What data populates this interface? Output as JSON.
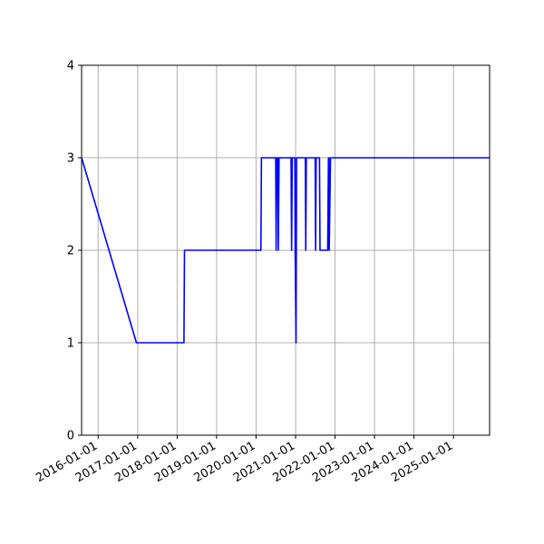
{
  "chart_data": {
    "type": "line",
    "title": "",
    "xlabel": "",
    "ylabel": "",
    "x_axis_type": "date",
    "xlim": [
      "2015-08-01",
      "2025-12-01"
    ],
    "ylim": [
      0,
      4
    ],
    "grid": true,
    "x_ticks": [
      "2016-01-01",
      "2017-01-01",
      "2018-01-01",
      "2019-01-01",
      "2020-01-01",
      "2021-01-01",
      "2022-01-01",
      "2023-01-01",
      "2024-01-01",
      "2025-01-01"
    ],
    "y_ticks": [
      0,
      1,
      2,
      3,
      4
    ],
    "series": [
      {
        "color": "#0000ff",
        "points": [
          {
            "x": "2015-08-01",
            "y": 3
          },
          {
            "x": "2016-12-20",
            "y": 1
          },
          {
            "x": "2018-03-05",
            "y": 1
          },
          {
            "x": "2018-03-10",
            "y": 2
          },
          {
            "x": "2020-02-15",
            "y": 2
          },
          {
            "x": "2020-02-20",
            "y": 3
          },
          {
            "x": "2020-07-01",
            "y": 3
          },
          {
            "x": "2020-07-05",
            "y": 2
          },
          {
            "x": "2020-07-10",
            "y": 3
          },
          {
            "x": "2020-07-20",
            "y": 3
          },
          {
            "x": "2020-07-25",
            "y": 2
          },
          {
            "x": "2020-08-01",
            "y": 3
          },
          {
            "x": "2020-11-20",
            "y": 3
          },
          {
            "x": "2020-11-25",
            "y": 2
          },
          {
            "x": "2020-12-01",
            "y": 3
          },
          {
            "x": "2020-12-25",
            "y": 3
          },
          {
            "x": "2020-12-28",
            "y": 2
          },
          {
            "x": "2021-01-05",
            "y": 1
          },
          {
            "x": "2021-01-10",
            "y": 3
          },
          {
            "x": "2021-04-01",
            "y": 3
          },
          {
            "x": "2021-04-05",
            "y": 2
          },
          {
            "x": "2021-04-10",
            "y": 3
          },
          {
            "x": "2021-07-01",
            "y": 3
          },
          {
            "x": "2021-07-05",
            "y": 2
          },
          {
            "x": "2021-07-10",
            "y": 3
          },
          {
            "x": "2021-08-10",
            "y": 3
          },
          {
            "x": "2021-08-15",
            "y": 2
          },
          {
            "x": "2021-10-25",
            "y": 2
          },
          {
            "x": "2021-11-01",
            "y": 3
          },
          {
            "x": "2021-11-05",
            "y": 3
          },
          {
            "x": "2021-11-08",
            "y": 2
          },
          {
            "x": "2021-11-20",
            "y": 3
          },
          {
            "x": "2025-12-01",
            "y": 3
          }
        ]
      }
    ]
  }
}
